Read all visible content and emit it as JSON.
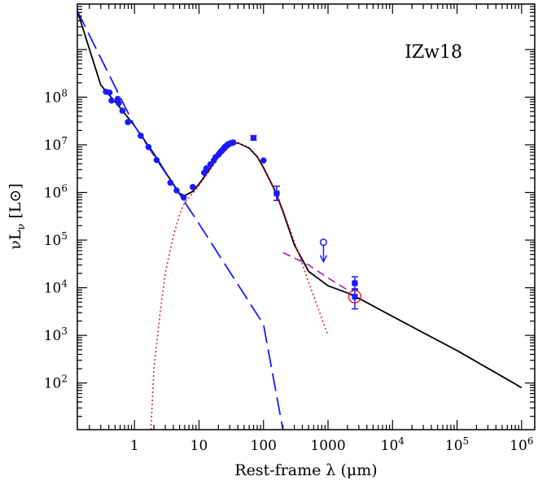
{
  "chart_data": {
    "type": "scatter",
    "title": "",
    "annotation": "IZw18",
    "xlabel": "Rest-frame λ (μm)",
    "ylabel": "νLν [L⊙]",
    "x_scale": "log",
    "y_scale": "log",
    "xlim": [
      0.13,
      1600000
    ],
    "ylim": [
      10.5,
      9000000000
    ],
    "grid": false,
    "legend": "none",
    "x_ticks": [
      {
        "value": 1,
        "label": "1"
      },
      {
        "value": 10,
        "label": "10"
      },
      {
        "value": 100,
        "label": "100"
      },
      {
        "value": 1000,
        "label": "1000"
      },
      {
        "value": 10000,
        "label": "10",
        "sup": "4"
      },
      {
        "value": 100000,
        "label": "10",
        "sup": "5"
      },
      {
        "value": 1000000,
        "label": "10",
        "sup": "6"
      }
    ],
    "y_ticks": [
      {
        "value": 100,
        "label": "10",
        "sup": "2"
      },
      {
        "value": 1000,
        "label": "10",
        "sup": "3"
      },
      {
        "value": 10000,
        "label": "10",
        "sup": "4"
      },
      {
        "value": 100000,
        "label": "10",
        "sup": "5"
      },
      {
        "value": 1000000,
        "label": "10",
        "sup": "6"
      },
      {
        "value": 10000000,
        "label": "10",
        "sup": "7"
      },
      {
        "value": 100000000,
        "label": "10",
        "sup": "8"
      }
    ],
    "colors": {
      "points": "#1a1aff",
      "total": "#000000",
      "stellar": "#1a1aff",
      "dust": "#e0202a",
      "radio": "#a020c0",
      "circle": "#e0202a"
    },
    "series": [
      {
        "kind": "points",
        "x": [
          0.36,
          0.41,
          0.44,
          0.55,
          0.57,
          0.65,
          0.79,
          1.25,
          1.65,
          2.2,
          3.6,
          4.5,
          5.8,
          8.0,
          12,
          13,
          15,
          17,
          18,
          20,
          21,
          22,
          23,
          24,
          25,
          26,
          27,
          28,
          30,
          32,
          34,
          100,
          160,
          2600
        ],
        "y": [
          130000000,
          125000000,
          85000000,
          92000000,
          75000000,
          52000000,
          30000000,
          15500000,
          9000000,
          4800000,
          1600000,
          1100000,
          780000,
          1300000,
          2600000,
          3200000,
          3900000,
          4700000,
          5500000,
          6200000,
          6800000,
          7300000,
          7700000,
          8300000,
          8900000,
          9300000,
          9700000,
          10200000,
          10600000,
          11000000,
          11200000,
          4700000,
          950000,
          12500
        ]
      },
      {
        "kind": "errorbars",
        "points": [
          {
            "x": 70,
            "y": 14000000,
            "lo": 12600000,
            "hi": 15400000
          },
          {
            "x": 160,
            "y": 950000,
            "lo": 680000,
            "hi": 1350000
          },
          {
            "x": 2600,
            "y": 12500,
            "lo": 9000,
            "hi": 17000
          },
          {
            "x": 2600,
            "y": 6500,
            "lo": 3600,
            "hi": 9500
          }
        ]
      },
      {
        "kind": "upper-limit",
        "x": 850,
        "y": 90000
      },
      {
        "kind": "circled-point",
        "x": 2600,
        "y": 6500
      },
      {
        "kind": "line",
        "style": "solid",
        "x": [
          0.13,
          0.3,
          0.6,
          1,
          2,
          3,
          4,
          5,
          6,
          8,
          10,
          15,
          20,
          30,
          40,
          60,
          80,
          100,
          150,
          200,
          300,
          500,
          1000,
          2000,
          3000,
          10000,
          100000,
          1000000
        ],
        "y": [
          6500000000,
          180000000,
          60000000,
          25000000,
          6500000,
          2700000,
          1500000,
          950000,
          860000,
          1050000,
          1500000,
          3200000,
          5800000,
          9500000,
          11000000,
          8500000,
          5600000,
          3300000,
          1100000,
          400000,
          80000,
          22000,
          11000,
          7800,
          6000,
          2500,
          480,
          80
        ]
      },
      {
        "kind": "line",
        "style": "dashed",
        "x": [
          0.13,
          1,
          10,
          100,
          200
        ],
        "y": [
          6500000000,
          25000000,
          220000,
          1700,
          10.5
        ]
      },
      {
        "kind": "line",
        "style": "dotted",
        "x": [
          1.8,
          2,
          2.5,
          3,
          4,
          5,
          6,
          8,
          10,
          15,
          20,
          30,
          40,
          60,
          80,
          100,
          150,
          200,
          300,
          500,
          1000
        ],
        "y": [
          10.5,
          200,
          3000,
          20000,
          120000,
          340000,
          620000,
          950000,
          1400000,
          3000000,
          5400000,
          9200000,
          11000000,
          8700000,
          5800000,
          3500000,
          1150000,
          430000,
          95000,
          13000,
          1000
        ]
      },
      {
        "kind": "line",
        "style": "dashed",
        "x": [
          200,
          500,
          1000,
          2000
        ],
        "y": [
          55000,
          30000,
          16000,
          9000
        ]
      }
    ]
  }
}
